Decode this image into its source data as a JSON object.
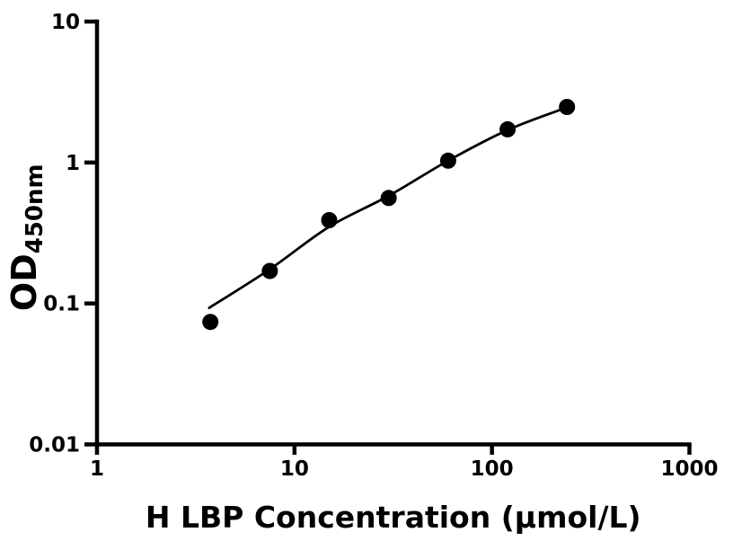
{
  "chart_data": {
    "type": "scatter",
    "title": "",
    "xlabel": "H LBP Concentration (μmol/L)",
    "ylabel_main": "OD",
    "ylabel_sub": "450nm",
    "xscale": "log",
    "yscale": "log",
    "xlim": [
      1,
      1000
    ],
    "ylim": [
      0.01,
      10
    ],
    "x_ticks": [
      1,
      10,
      100,
      1000
    ],
    "y_ticks": [
      10,
      1,
      0.1,
      0.01
    ],
    "grid": false,
    "legend": "none",
    "series": [
      {
        "name": "standard-curve-points",
        "marker": "circle",
        "points": [
          [
            3.75,
            0.074
          ],
          [
            7.5,
            0.17
          ],
          [
            15,
            0.39
          ],
          [
            30,
            0.56
          ],
          [
            60,
            1.03
          ],
          [
            120,
            1.72
          ],
          [
            240,
            2.48
          ]
        ]
      }
    ],
    "fit_curve": [
      [
        3.7,
        0.093
      ],
      [
        7.5,
        0.175
      ],
      [
        15,
        0.35
      ],
      [
        30,
        0.58
      ],
      [
        60,
        1.03
      ],
      [
        120,
        1.7
      ],
      [
        240,
        2.46
      ]
    ],
    "colors": {
      "foreground": "#000000",
      "background": "#ffffff"
    }
  }
}
